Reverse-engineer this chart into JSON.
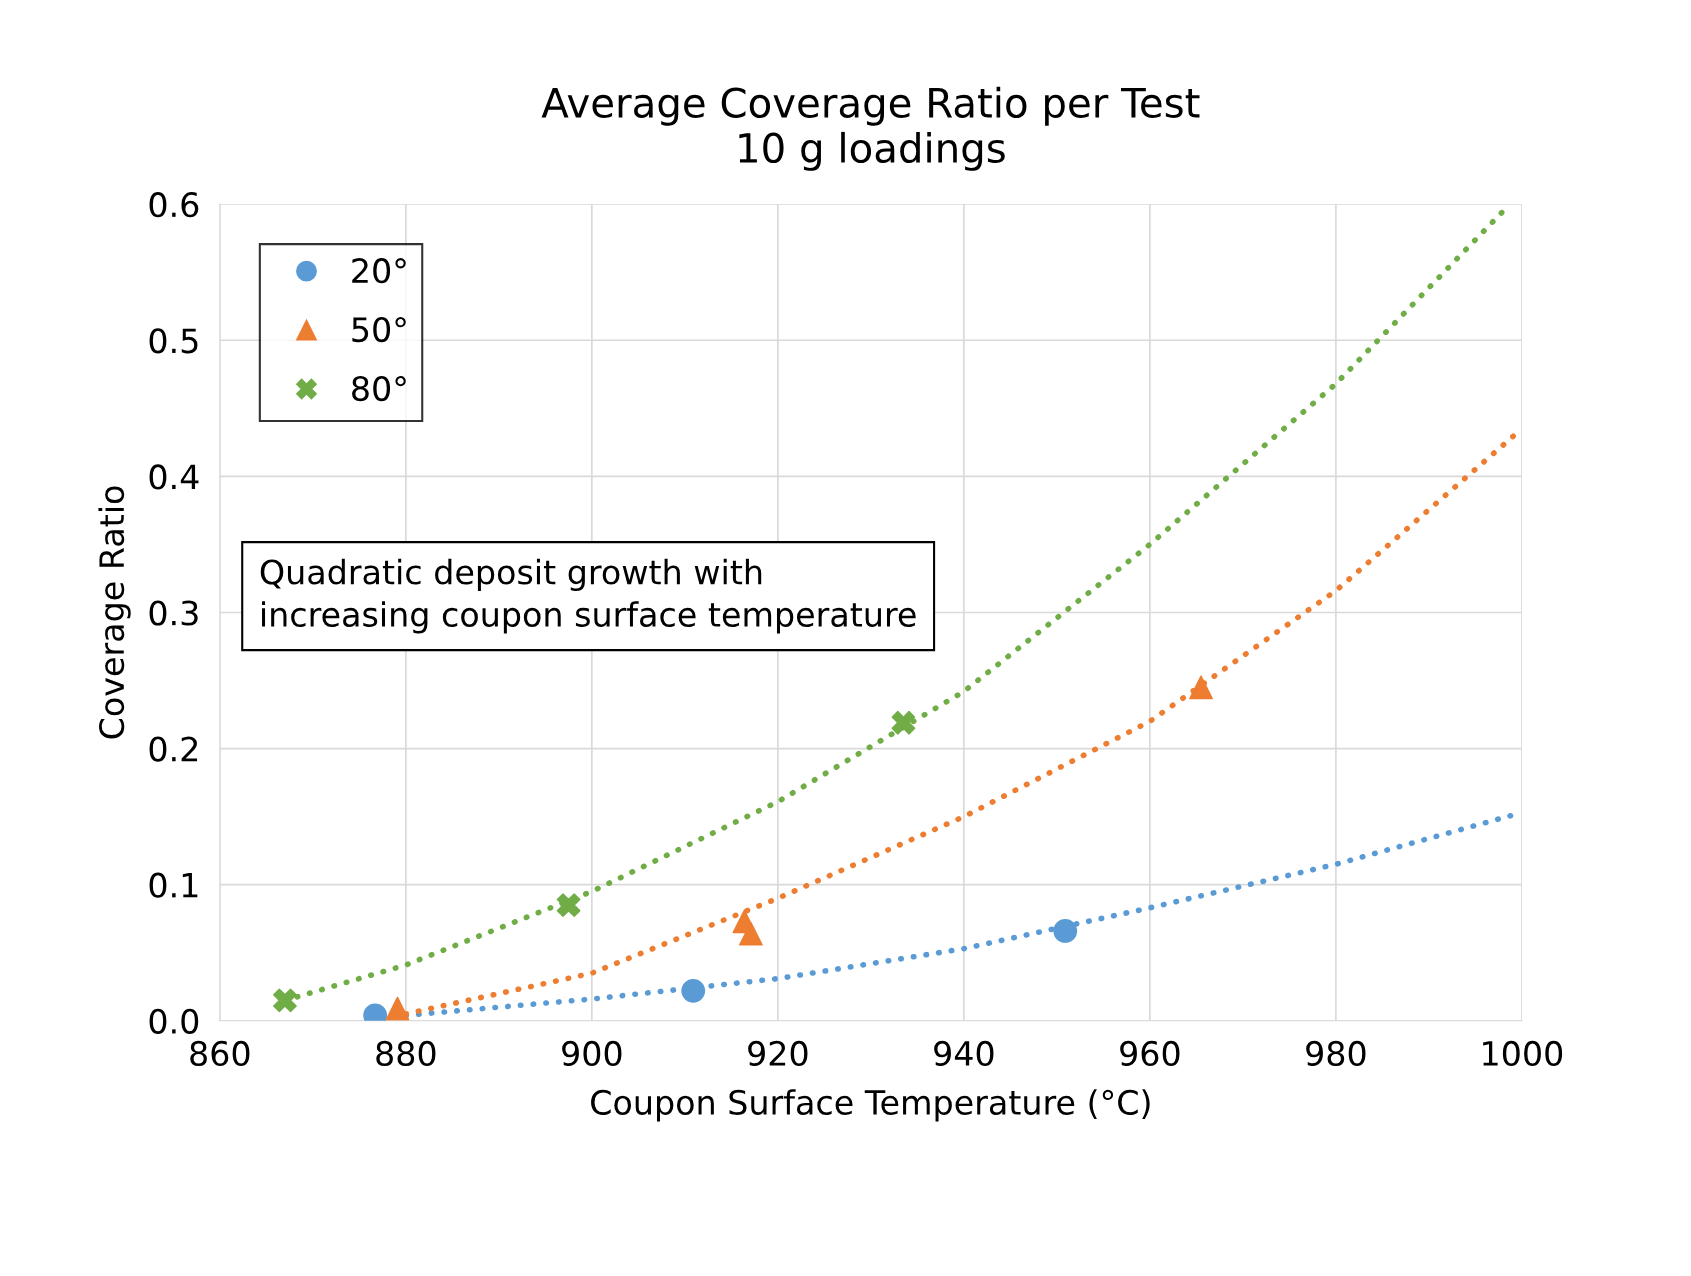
{
  "chart_data": {
    "type": "scatter",
    "title": "Average Coverage Ratio per Test\n10 g loadings",
    "xlabel": "Coupon Surface Temperature (°C)",
    "ylabel": "Coverage Ratio",
    "xlim": [
      860,
      1000
    ],
    "xticks": [
      860,
      880,
      900,
      920,
      940,
      960,
      980,
      1000
    ],
    "ylim": [
      0,
      0.6
    ],
    "yticks": [
      {
        "value": 0,
        "label": "0.0"
      },
      0.1,
      0.2,
      0.3,
      0.4,
      0.5,
      0.6
    ],
    "grid": true,
    "legend": "top left",
    "annotations": [
      "Quadratic deposit growth with\nincreasing coupon surface temperature"
    ],
    "series": [
      {
        "type": "line",
        "color": "#5b9bd5",
        "line_style": "dotted",
        "marker": "none",
        "x": [
          880,
          900,
          920,
          940,
          960,
          980,
          1000
        ],
        "values": [
          0.004,
          0.016,
          0.031,
          0.053,
          0.083,
          0.115,
          0.153
        ]
      },
      {
        "type": "line",
        "color": "#ed7d31",
        "line_style": "dotted",
        "marker": "none",
        "x": [
          880,
          900,
          920,
          940,
          960,
          980,
          1000
        ],
        "values": [
          0.005,
          0.035,
          0.09,
          0.15,
          0.22,
          0.316,
          0.435
        ]
      },
      {
        "type": "line",
        "color": "#70ad47",
        "line_style": "dotted",
        "marker": "none",
        "x": [
          867,
          880,
          900,
          920,
          940,
          960,
          980,
          998
        ],
        "values": [
          0.015,
          0.041,
          0.095,
          0.161,
          0.242,
          0.35,
          0.468,
          0.595
        ]
      },
      {
        "name": "20°",
        "color": "#5b9bd5",
        "marker": "circle",
        "x": [
          876.7,
          910.9,
          950.9
        ],
        "values": [
          0.004,
          0.022,
          0.066
        ]
      },
      {
        "name": "50°",
        "color": "#ed7d31",
        "marker": "triangle",
        "x": [
          879.1,
          916.4,
          917.1,
          965.5
        ],
        "values": [
          0.009,
          0.073,
          0.064,
          0.245
        ]
      },
      {
        "name": "80°",
        "color": "#70ad47",
        "marker": "cross",
        "x": [
          867.0,
          897.5,
          933.5
        ],
        "values": [
          0.015,
          0.085,
          0.219
        ]
      }
    ]
  }
}
